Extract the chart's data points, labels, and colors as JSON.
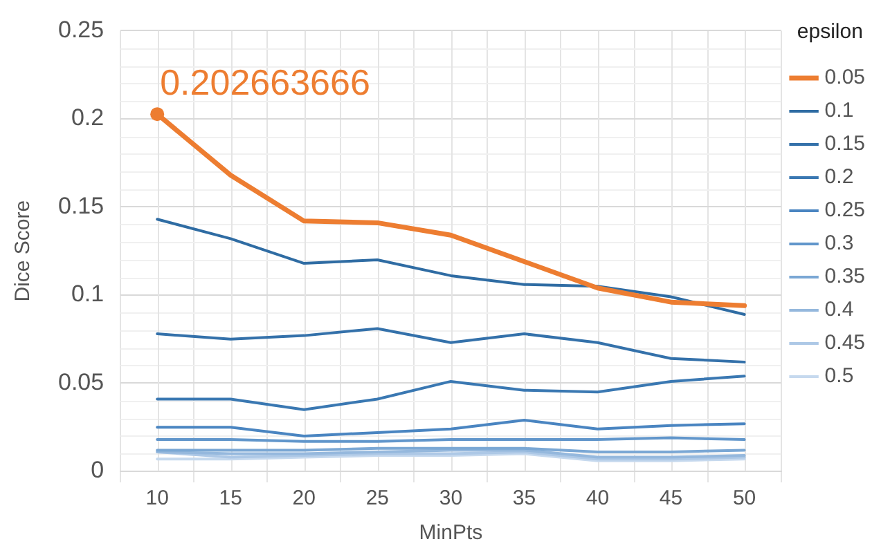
{
  "chart_data": {
    "type": "line",
    "xlabel": "MinPts",
    "ylabel": "Dice Score",
    "legend_title": "epsilon",
    "legend": "right",
    "grid": true,
    "marker": "none",
    "line_style": "solid",
    "categories": [
      "10",
      "15",
      "20",
      "25",
      "30",
      "35",
      "40",
      "45",
      "50"
    ],
    "ylim": [
      0,
      0.25
    ],
    "yticks": [
      0,
      0.05,
      0.1,
      0.15,
      0.2,
      0.25
    ],
    "series": [
      {
        "name": "0.05",
        "color": "#ed7d31",
        "values": [
          0.202663666,
          0.168,
          0.142,
          0.141,
          0.134,
          0.119,
          0.104,
          0.096,
          0.094
        ]
      },
      {
        "name": "0.1",
        "color": "#2f6ca3",
        "values": [
          0.143,
          0.132,
          0.118,
          0.12,
          0.111,
          0.106,
          0.105,
          0.099,
          0.089
        ]
      },
      {
        "name": "0.15",
        "color": "#3471aa",
        "values": [
          0.078,
          0.075,
          0.077,
          0.081,
          0.073,
          0.078,
          0.073,
          0.064,
          0.062
        ]
      },
      {
        "name": "0.2",
        "color": "#3a78b2",
        "values": [
          0.041,
          0.041,
          0.035,
          0.041,
          0.051,
          0.046,
          0.045,
          0.051,
          0.054
        ]
      },
      {
        "name": "0.25",
        "color": "#4a85c1",
        "values": [
          0.025,
          0.025,
          0.02,
          0.022,
          0.024,
          0.029,
          0.024,
          0.026,
          0.027
        ]
      },
      {
        "name": "0.3",
        "color": "#6196cb",
        "values": [
          0.018,
          0.018,
          0.017,
          0.017,
          0.018,
          0.018,
          0.018,
          0.019,
          0.018
        ]
      },
      {
        "name": "0.35",
        "color": "#7aa7d4",
        "values": [
          0.012,
          0.012,
          0.012,
          0.013,
          0.013,
          0.013,
          0.011,
          0.011,
          0.012
        ]
      },
      {
        "name": "0.4",
        "color": "#95b8dd",
        "values": [
          0.011,
          0.01,
          0.01,
          0.011,
          0.012,
          0.012,
          0.008,
          0.008,
          0.009
        ]
      },
      {
        "name": "0.45",
        "color": "#adc8e6",
        "values": [
          0.011,
          0.008,
          0.009,
          0.01,
          0.01,
          0.011,
          0.007,
          0.007,
          0.008
        ]
      },
      {
        "name": "0.5",
        "color": "#c6d9ee",
        "values": [
          0.007,
          0.007,
          0.008,
          0.009,
          0.009,
          0.01,
          0.006,
          0.006,
          0.007
        ]
      }
    ],
    "annotations": [
      {
        "text": "0.202663666",
        "x": "10",
        "y": 0.202663666
      }
    ]
  }
}
